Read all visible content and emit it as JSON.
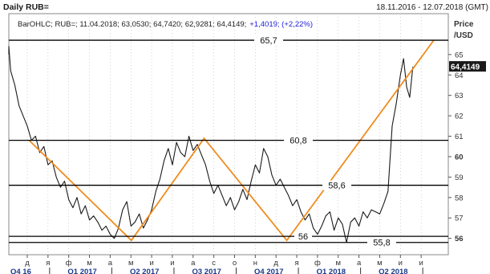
{
  "header": {
    "title": "Daily RUB=",
    "range": "18.11.2016 - 12.07.2018 (GMT)"
  },
  "info": {
    "text": "BarOHLC; RUB=; 11.04.2018; 63,0530; 64,7420; 62,9281; 64,4149;",
    "change": "+1,4019; (+2,22%)"
  },
  "axis": {
    "unit_line1": "Price",
    "unit_line2": "/USD",
    "current_price": "64,4149"
  },
  "colors": {
    "price_line": "#1a1a1a",
    "pattern": "#f08c1e",
    "level_line": "#000000",
    "badge_bg": "#1a1a1a",
    "badge_text": "#ffffff",
    "change_text": "#1c1cdc",
    "axis_text": "#333333",
    "grid": "#b4b4b4",
    "quarter_text": "#1a3a8c",
    "background": "#ffffff"
  },
  "chart_data": {
    "type": "line",
    "ylim": [
      55.2,
      67
    ],
    "y_ticks": [
      {
        "value": 56,
        "label": "56",
        "bold": true
      },
      {
        "value": 57,
        "label": "57",
        "bold": false
      },
      {
        "value": 58,
        "label": "58",
        "bold": false
      },
      {
        "value": 59,
        "label": "59",
        "bold": false
      },
      {
        "value": 60,
        "label": "60",
        "bold": true
      },
      {
        "value": 61,
        "label": "61",
        "bold": false
      },
      {
        "value": 62,
        "label": "62",
        "bold": false
      },
      {
        "value": 63,
        "label": "63",
        "bold": false
      },
      {
        "value": 64,
        "label": "64",
        "bold": false
      },
      {
        "value": 65,
        "label": "65",
        "bold": false
      }
    ],
    "month_ticks": [
      "д",
      "я",
      "ф",
      "м",
      "а",
      "м",
      "и",
      "и",
      "а",
      "с",
      "о",
      "н",
      "д",
      "я",
      "ф",
      "м",
      "а",
      "м",
      "и",
      "и"
    ],
    "quarter_labels": [
      "Q4 16",
      "Q1 2017",
      "Q2 2017",
      "Q3 2017",
      "Q4 2017",
      "Q1 2018",
      "Q2 2018"
    ],
    "levels": [
      {
        "value": 65.7,
        "label": "65,7"
      },
      {
        "value": 60.8,
        "label": "60,8"
      },
      {
        "value": 58.6,
        "label": "58,6"
      },
      {
        "value": 56.1,
        "label": "56"
      },
      {
        "value": 55.8,
        "label": "55,8"
      }
    ],
    "pattern": [
      {
        "x": 0.09,
        "y": 60.8
      },
      {
        "x": 5.02,
        "y": 55.9
      },
      {
        "x": 8.53,
        "y": 60.9
      },
      {
        "x": 12.52,
        "y": 55.9
      },
      {
        "x": 19.61,
        "y": 65.7
      }
    ],
    "series": [
      {
        "x": [
          -1.2,
          -1.0,
          -0.8,
          -0.6,
          -0.4,
          -0.2,
          0.0,
          0.2,
          0.4,
          0.6,
          0.8,
          1.0,
          1.2,
          1.4,
          1.6,
          1.8,
          2.0,
          2.2,
          2.4,
          2.6,
          2.8,
          3.0,
          3.2,
          3.4,
          3.6,
          3.8,
          4.0,
          4.2,
          4.4,
          4.6,
          4.8,
          5.0,
          5.2,
          5.4,
          5.6,
          5.8,
          6.0,
          6.2,
          6.4,
          6.6,
          6.8,
          7.0,
          7.2,
          7.4,
          7.6,
          7.8,
          8.0,
          8.2,
          8.4,
          8.6,
          8.8,
          9.0,
          9.2,
          9.4,
          9.6,
          9.8,
          10.0,
          10.2,
          10.4,
          10.6,
          10.8,
          11.0,
          11.2,
          11.4,
          11.6,
          11.8,
          12.0,
          12.2,
          12.4,
          12.6,
          12.8,
          13.0,
          13.2,
          13.4,
          13.6,
          13.8,
          14.0,
          14.2,
          14.4,
          14.6,
          14.8,
          15.0,
          15.2,
          15.4,
          15.6,
          15.8,
          16.0,
          16.2,
          16.4,
          16.6,
          16.8,
          17.0,
          17.2,
          17.4,
          17.6,
          17.8,
          18.0,
          18.15,
          18.3,
          18.45,
          18.6
        ],
        "y": [
          65.0,
          65.4,
          64.2,
          63.5,
          62.5,
          62.0,
          61.5,
          60.8,
          61.0,
          60.2,
          60.5,
          59.6,
          59.8,
          59.0,
          58.5,
          58.8,
          57.9,
          57.5,
          58.0,
          57.2,
          57.6,
          56.9,
          57.1,
          56.8,
          56.4,
          56.6,
          56.2,
          56.0,
          56.5,
          57.4,
          57.8,
          56.6,
          56.8,
          57.2,
          56.5,
          56.9,
          57.4,
          58.3,
          58.9,
          59.8,
          60.4,
          59.6,
          60.7,
          60.2,
          60.0,
          61.0,
          60.3,
          60.6,
          60.1,
          59.6,
          58.8,
          58.2,
          58.6,
          58.1,
          57.6,
          58.0,
          57.4,
          57.8,
          58.4,
          57.9,
          58.8,
          59.6,
          59.2,
          60.4,
          60.0,
          59.1,
          58.6,
          58.9,
          58.5,
          58.1,
          57.6,
          57.9,
          57.3,
          56.9,
          57.2,
          56.5,
          56.2,
          56.6,
          57.1,
          57.3,
          56.4,
          57.0,
          56.7,
          55.8,
          56.8,
          57.0,
          56.6,
          57.3,
          57.0,
          57.4,
          57.3,
          57.2,
          57.7,
          58.3,
          61.5,
          62.6,
          64.0,
          64.8,
          63.4,
          62.9,
          64.4
        ]
      }
    ]
  }
}
